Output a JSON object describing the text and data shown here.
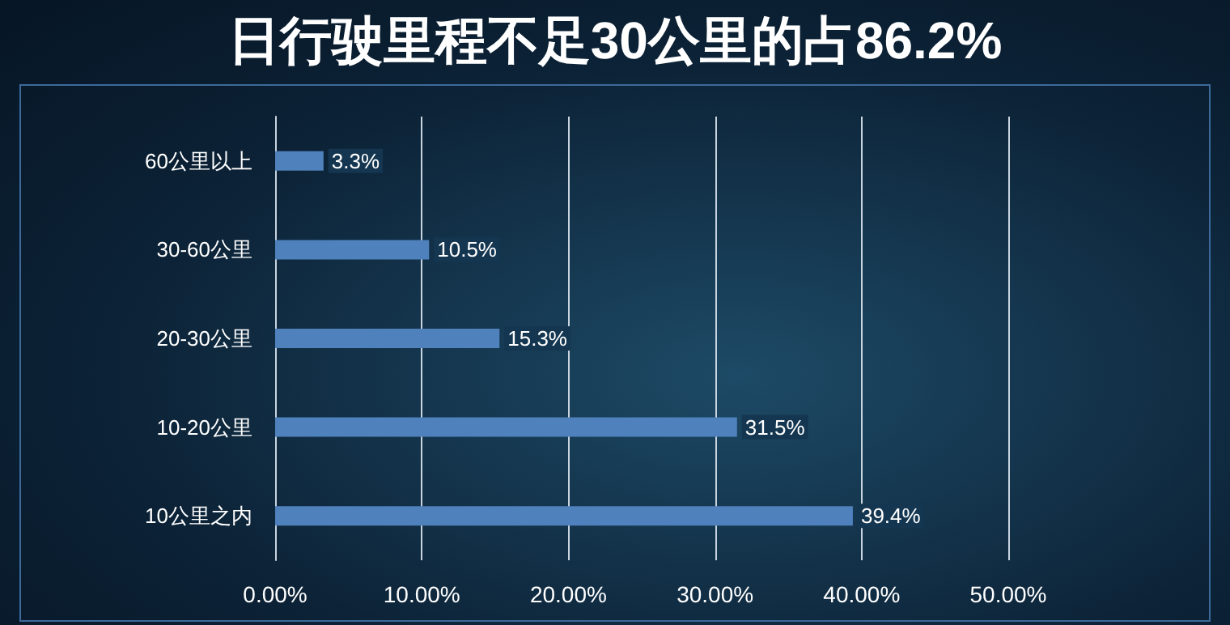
{
  "chart_data": {
    "type": "bar",
    "orientation": "horizontal",
    "title": "日行驶里程不足30公里的占86.2%",
    "categories": [
      "60公里以上",
      "30-60公里",
      "20-30公里",
      "10-20公里",
      "10公里之内"
    ],
    "values": [
      3.3,
      10.5,
      15.3,
      31.5,
      39.4
    ],
    "value_labels": [
      "3.3%",
      "10.5%",
      "15.3%",
      "31.5%",
      "39.4%"
    ],
    "color": "#4f81bd",
    "xlim": [
      0,
      50
    ],
    "xticks": [
      {
        "value": 0,
        "label": "0.00%"
      },
      {
        "value": 10,
        "label": "10.00%"
      },
      {
        "value": 20,
        "label": "20.00%"
      },
      {
        "value": 30,
        "label": "30.00%"
      },
      {
        "value": 40,
        "label": "40.00%"
      },
      {
        "value": 50,
        "label": "50.00%"
      }
    ],
    "grid": "x"
  }
}
